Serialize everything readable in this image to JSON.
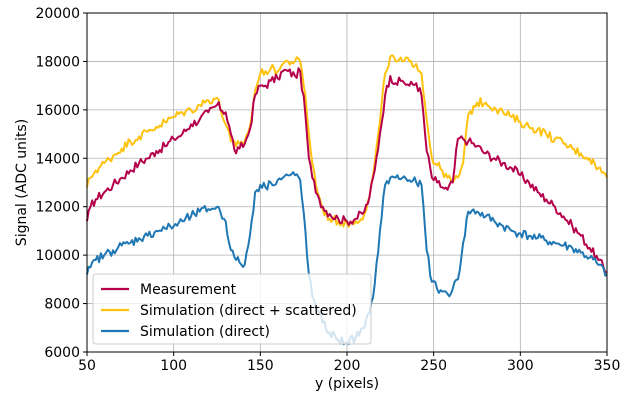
{
  "chart_data": {
    "type": "line",
    "xlabel": "y (pixels)",
    "ylabel": "Signal (ADC units)",
    "xlim": [
      50,
      350
    ],
    "ylim": [
      6000,
      20000
    ],
    "xticks": [
      50,
      100,
      150,
      200,
      250,
      300,
      350
    ],
    "yticks": [
      6000,
      8000,
      10000,
      12000,
      14000,
      16000,
      18000,
      20000
    ],
    "grid": true,
    "legend_position": "lower-left",
    "series": [
      {
        "name": "Measurement",
        "color": "#b5004b",
        "x": [
          50,
          52,
          55,
          60,
          65,
          70,
          75,
          80,
          85,
          90,
          95,
          100,
          105,
          110,
          115,
          120,
          125,
          130,
          133,
          136,
          138,
          141,
          144,
          147,
          150,
          153,
          156,
          160,
          163,
          166,
          170,
          173,
          176,
          178,
          180,
          183,
          186,
          190,
          195,
          200,
          205,
          210,
          213,
          216,
          219,
          222,
          225,
          228,
          232,
          236,
          240,
          243,
          246,
          249,
          252,
          255,
          258,
          261,
          264,
          267,
          270,
          275,
          280,
          285,
          290,
          295,
          300,
          305,
          310,
          315,
          320,
          325,
          330,
          335,
          340,
          345,
          350
        ],
        "y": [
          11400,
          12000,
          12300,
          12600,
          12900,
          13200,
          13500,
          13800,
          14000,
          14300,
          14500,
          14800,
          15000,
          15400,
          15600,
          15900,
          16200,
          15900,
          15000,
          14200,
          14400,
          14600,
          15200,
          16600,
          17000,
          17000,
          17200,
          17300,
          17600,
          17600,
          17400,
          17600,
          15800,
          14000,
          13200,
          12500,
          12000,
          11700,
          11500,
          11400,
          11500,
          11800,
          12400,
          13500,
          15000,
          16600,
          17400,
          17100,
          17200,
          17000,
          17100,
          16600,
          14300,
          13200,
          13000,
          12800,
          12700,
          13000,
          14800,
          14800,
          14700,
          14500,
          14200,
          14000,
          13800,
          13600,
          13300,
          13000,
          12600,
          12300,
          12000,
          11600,
          11200,
          10800,
          10300,
          9800,
          9300
        ]
      },
      {
        "name": "Simulation (direct + scattered)",
        "color": "#ffc20e",
        "x": [
          50,
          52,
          55,
          60,
          65,
          70,
          75,
          80,
          85,
          90,
          95,
          100,
          105,
          110,
          115,
          120,
          125,
          130,
          133,
          136,
          138,
          141,
          144,
          147,
          150,
          153,
          156,
          160,
          163,
          166,
          170,
          173,
          176,
          178,
          180,
          183,
          186,
          190,
          195,
          200,
          205,
          210,
          213,
          216,
          219,
          222,
          225,
          228,
          232,
          236,
          240,
          243,
          246,
          249,
          252,
          255,
          258,
          261,
          264,
          267,
          270,
          275,
          280,
          285,
          290,
          295,
          300,
          305,
          310,
          315,
          320,
          325,
          330,
          335,
          340,
          345,
          350
        ],
        "y": [
          12800,
          13200,
          13500,
          13800,
          14100,
          14400,
          14700,
          14900,
          15100,
          15300,
          15500,
          15700,
          15900,
          16000,
          16200,
          16400,
          16500,
          15400,
          14700,
          14500,
          14600,
          14700,
          15300,
          16800,
          17500,
          17600,
          17700,
          17600,
          17900,
          18000,
          18000,
          18000,
          16600,
          15000,
          13800,
          12600,
          11900,
          11500,
          11400,
          11300,
          11400,
          11700,
          12400,
          13800,
          15500,
          17500,
          18200,
          18000,
          18000,
          18000,
          17900,
          17500,
          15600,
          14000,
          13700,
          13500,
          13200,
          13000,
          13200,
          13800,
          15800,
          16300,
          16300,
          16100,
          15900,
          15700,
          15500,
          15300,
          15200,
          15000,
          14800,
          14600,
          14400,
          14200,
          14000,
          13600,
          13200
        ]
      },
      {
        "name": "Simulation (direct)",
        "color": "#1f77b4",
        "x": [
          50,
          52,
          55,
          60,
          65,
          70,
          75,
          80,
          85,
          90,
          95,
          100,
          105,
          110,
          115,
          120,
          125,
          130,
          133,
          136,
          138,
          141,
          144,
          147,
          150,
          153,
          156,
          160,
          163,
          166,
          170,
          173,
          176,
          178,
          180,
          183,
          186,
          190,
          195,
          200,
          205,
          210,
          213,
          216,
          219,
          222,
          225,
          228,
          232,
          236,
          240,
          243,
          246,
          249,
          252,
          255,
          258,
          261,
          264,
          267,
          270,
          275,
          280,
          285,
          290,
          295,
          300,
          305,
          310,
          315,
          320,
          325,
          330,
          335,
          340,
          345,
          350
        ],
        "y": [
          9200,
          9500,
          9800,
          10000,
          10200,
          10400,
          10500,
          10700,
          10800,
          11000,
          11100,
          11200,
          11400,
          11600,
          11800,
          11900,
          12000,
          11400,
          10200,
          9800,
          9700,
          9600,
          10800,
          12600,
          12900,
          12800,
          13000,
          13100,
          13200,
          13300,
          13300,
          13100,
          11000,
          9200,
          8300,
          7700,
          7200,
          6800,
          6500,
          6400,
          6600,
          7000,
          7600,
          8800,
          11000,
          12900,
          13200,
          13200,
          13200,
          13100,
          13000,
          12900,
          10200,
          8900,
          8600,
          8500,
          8400,
          8600,
          9000,
          10500,
          11800,
          11800,
          11600,
          11400,
          11200,
          11000,
          10900,
          10800,
          10700,
          10600,
          10500,
          10400,
          10300,
          10100,
          9900,
          9600,
          9200
        ]
      }
    ]
  }
}
